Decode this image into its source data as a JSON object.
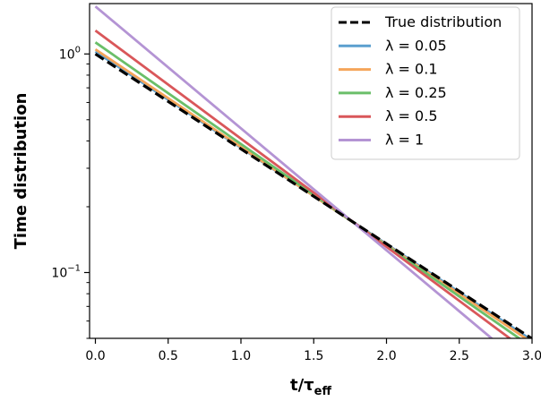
{
  "chart_data": {
    "type": "line",
    "xlabel_main": "t/τ",
    "xlabel_sub": "eff",
    "ylabel": "Time distribution",
    "xlim": [
      -0.04,
      3.0
    ],
    "ylim": [
      0.05,
      1.7
    ],
    "yscale": "log",
    "x_ticks": [
      0.0,
      0.5,
      1.0,
      1.5,
      2.0,
      2.5,
      3.0
    ],
    "x_tick_labels": [
      "0.0",
      "0.5",
      "1.0",
      "1.5",
      "2.0",
      "2.5",
      "3.0"
    ],
    "y_ticks": [
      {
        "value": 1.0,
        "base": "10",
        "exp": "0"
      },
      {
        "value": 0.1,
        "base": "10",
        "exp": "−1"
      }
    ],
    "legend_position": "top-right",
    "true_series": {
      "name": "True distribution",
      "color": "#000000",
      "style": "dashed",
      "x": [
        0.0,
        3.0
      ],
      "y": [
        1.0,
        0.0498
      ]
    },
    "series": [
      {
        "name": "λ = 0.05",
        "color": "#5b9fcf",
        "x": [
          0.0,
          3.0
        ],
        "y": [
          1.025,
          0.049
        ]
      },
      {
        "name": "λ = 0.1",
        "color": "#f5a55a",
        "x": [
          0.0,
          3.0
        ],
        "y": [
          1.05,
          0.0478
        ]
      },
      {
        "name": "λ = 0.25",
        "color": "#6abf69",
        "x": [
          0.0,
          3.0
        ],
        "y": [
          1.13,
          0.0455
        ]
      },
      {
        "name": "λ = 0.5",
        "color": "#d9575a",
        "x": [
          0.0,
          3.0
        ],
        "y": [
          1.28,
          0.042
        ]
      },
      {
        "name": "λ = 1",
        "color": "#b494d4",
        "x": [
          0.0,
          3.0
        ],
        "y": [
          1.65,
          0.035
        ]
      }
    ]
  }
}
